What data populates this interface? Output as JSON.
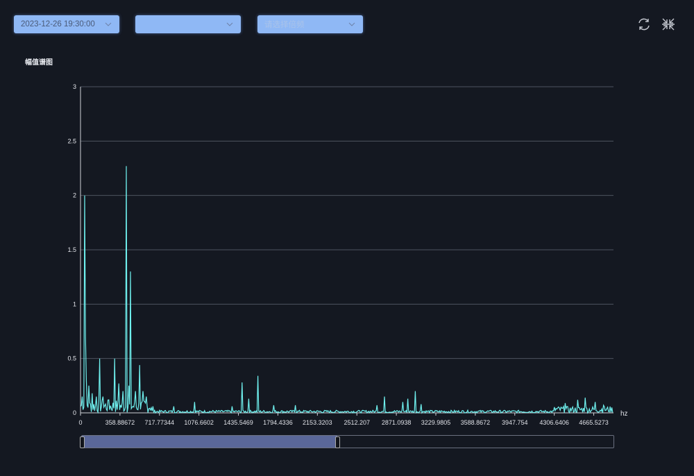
{
  "toolbar": {
    "datetime": {
      "value": "2023-12-26 19:30:00"
    },
    "channel": {
      "value": ""
    },
    "multiple": {
      "placeholder": "请选择倍频"
    },
    "refresh_icon": "refresh-icon",
    "collapse_icon": "compress-icon"
  },
  "colors": {
    "select_bg": "#8fb8f5",
    "line": "#6ff0ee",
    "background": "#141821",
    "zoom_fill": "#5a6799"
  },
  "chart_data": {
    "type": "line",
    "title": "幅值谱图",
    "xlabel": "hz",
    "ylabel": "",
    "xlim": [
      0,
      4845
    ],
    "ylim": [
      0,
      3
    ],
    "x_ticks": [
      "0",
      "358.88672",
      "717.77344",
      "1076.6602",
      "1435.5469",
      "1794.4336",
      "2153.3203",
      "2512.207",
      "2871.0938",
      "3229.9805",
      "3588.8672",
      "3947.754",
      "4306.6406",
      "4665.5273"
    ],
    "y_ticks": [
      "0",
      "0.5",
      "1",
      "1.5",
      "2",
      "2.5",
      "3"
    ],
    "grid": true,
    "data_zoom": {
      "start_percent": 0,
      "end_percent": 48
    },
    "peaks": [
      [
        20,
        0.15
      ],
      [
        38,
        2.0
      ],
      [
        48,
        0.7
      ],
      [
        60,
        0.3
      ],
      [
        80,
        0.25
      ],
      [
        110,
        0.18
      ],
      [
        150,
        0.15
      ],
      [
        180,
        0.5
      ],
      [
        210,
        0.15
      ],
      [
        260,
        0.12
      ],
      [
        315,
        0.5
      ],
      [
        350,
        0.27
      ],
      [
        390,
        0.2
      ],
      [
        420,
        2.27
      ],
      [
        440,
        0.25
      ],
      [
        460,
        1.3
      ],
      [
        500,
        0.2
      ],
      [
        540,
        0.44
      ],
      [
        570,
        0.2
      ],
      [
        600,
        0.15
      ],
      [
        660,
        0.06
      ],
      [
        850,
        0.06
      ],
      [
        1040,
        0.1
      ],
      [
        1380,
        0.06
      ],
      [
        1470,
        0.28
      ],
      [
        1530,
        0.13
      ],
      [
        1620,
        0.34
      ],
      [
        1760,
        0.07
      ],
      [
        1960,
        0.07
      ],
      [
        2700,
        0.07
      ],
      [
        2770,
        0.15
      ],
      [
        2930,
        0.1
      ],
      [
        2980,
        0.13
      ],
      [
        3050,
        0.2
      ],
      [
        3100,
        0.08
      ],
      [
        4410,
        0.09
      ],
      [
        4520,
        0.12
      ],
      [
        4590,
        0.14
      ],
      [
        4680,
        0.1
      ],
      [
        4760,
        0.07
      ]
    ]
  }
}
